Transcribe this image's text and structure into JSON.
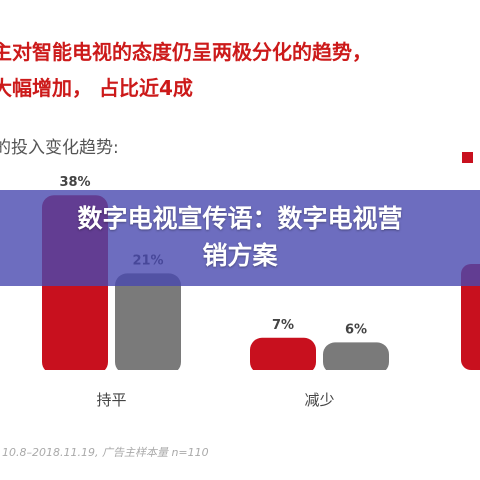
{
  "headline": {
    "line1": "主对智能电视的态度仍呈两极分化的趋势，",
    "line2": "大幅增加，   占比近4成"
  },
  "subtitle": "的投入变化趋势:",
  "banner": {
    "line1": "数字电视宣传语：数字电视营",
    "line2": "销方案"
  },
  "source": "10.8–2018.11.19,  广告主样本量 n=110",
  "colors": {
    "series_red": "#c8101e",
    "series_gray": "#7a7a7a",
    "banner": "#4848af"
  },
  "chart_data": {
    "type": "bar",
    "categories": [
      "持平",
      "减少"
    ],
    "series": [
      {
        "values": [
          38,
          7
        ],
        "color": "#c8101e"
      },
      {
        "values": [
          21,
          6
        ],
        "color": "#7a7a7a"
      }
    ],
    "value_labels": [
      "38%",
      "21%",
      "7%",
      "6%"
    ],
    "ylim": [
      0,
      40
    ]
  }
}
